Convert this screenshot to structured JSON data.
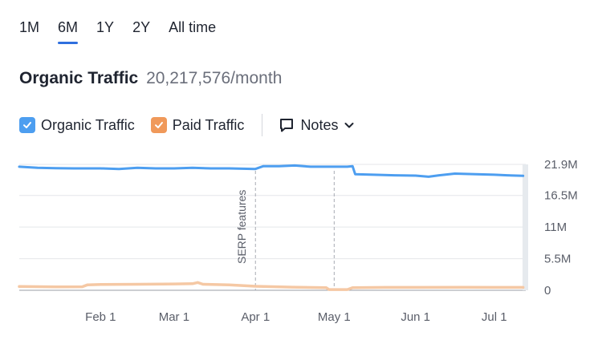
{
  "tabs": [
    {
      "label": "1M",
      "active": false
    },
    {
      "label": "6M",
      "active": true
    },
    {
      "label": "1Y",
      "active": false
    },
    {
      "label": "2Y",
      "active": false
    },
    {
      "label": "All time",
      "active": false
    }
  ],
  "header": {
    "title": "Organic Traffic",
    "value": "20,217,576",
    "unit": "/month"
  },
  "legend": {
    "items": [
      {
        "label": "Organic Traffic",
        "color": "#4d9ef0",
        "checked": true
      },
      {
        "label": "Paid Traffic",
        "color": "#f0995a",
        "checked": true
      }
    ],
    "notes_label": "Notes"
  },
  "chart_data": {
    "type": "line",
    "x_tick_labels": [
      "Feb 1",
      "Mar 1",
      "Apr 1",
      "May 1",
      "Jun 1",
      "Jul 1"
    ],
    "y_tick_labels": [
      "21.9M",
      "16.5M",
      "11M",
      "5.5M",
      "0"
    ],
    "ylim": [
      0,
      21900000
    ],
    "grid": true,
    "annotations": [
      {
        "date": "Apr 1",
        "label": "SERP features"
      },
      {
        "date": "May 1",
        "label": ""
      }
    ],
    "series": [
      {
        "name": "Organic Traffic",
        "color": "#4d9ef0",
        "points": [
          [
            "Jan 1",
            21500000.0
          ],
          [
            "Jan 8",
            21300000.0
          ],
          [
            "Jan 15",
            21250000.0
          ],
          [
            "Jan 22",
            21200000.0
          ],
          [
            "Feb 1",
            21200000.0
          ],
          [
            "Feb 8",
            21100000.0
          ],
          [
            "Feb 15",
            21300000.0
          ],
          [
            "Feb 22",
            21200000.0
          ],
          [
            "Mar 1",
            21200000.0
          ],
          [
            "Mar 8",
            21300000.0
          ],
          [
            "Mar 15",
            21200000.0
          ],
          [
            "Mar 22",
            21200000.0
          ],
          [
            "Apr 1",
            21100000.0
          ],
          [
            "Apr 4",
            21600000.0
          ],
          [
            "Apr 10",
            21600000.0
          ],
          [
            "Apr 16",
            21700000.0
          ],
          [
            "Apr 22",
            21500000.0
          ],
          [
            "May 1",
            21500000.0
          ],
          [
            "May 6",
            21500000.0
          ],
          [
            "May 8",
            21600000.0
          ],
          [
            "May 9",
            20200000.0
          ],
          [
            "May 16",
            20100000.0
          ],
          [
            "May 24",
            20000000.0
          ],
          [
            "Jun 1",
            19950000.0
          ],
          [
            "Jun 6",
            19750000.0
          ],
          [
            "Jun 10",
            20000000.0
          ],
          [
            "Jun 16",
            20300000.0
          ],
          [
            "Jun 24",
            20200000.0
          ],
          [
            "Jul 1",
            20100000.0
          ],
          [
            "Jul 6",
            20000000.0
          ],
          [
            "Jul 12",
            19900000.0
          ]
        ]
      },
      {
        "name": "Paid Traffic",
        "color": "#f5c8a4",
        "points": [
          [
            "Jan 1",
            650000.0
          ],
          [
            "Jan 15",
            600000.0
          ],
          [
            "Jan 25",
            620000.0
          ],
          [
            "Jan 27",
            950000.0
          ],
          [
            "Feb 1",
            1000000.0
          ],
          [
            "Feb 15",
            1050000.0
          ],
          [
            "Mar 1",
            1100000.0
          ],
          [
            "Mar 8",
            1150000.0
          ],
          [
            "Mar 10",
            1350000.0
          ],
          [
            "Mar 12",
            1050000.0
          ],
          [
            "Mar 22",
            950000.0
          ],
          [
            "Apr 1",
            700000.0
          ],
          [
            "Apr 15",
            550000.0
          ],
          [
            "Apr 28",
            450000.0
          ],
          [
            "Apr 29",
            120000.0
          ],
          [
            "May 6",
            120000.0
          ],
          [
            "May 8",
            450000.0
          ],
          [
            "May 20",
            500000.0
          ],
          [
            "Jun 1",
            500000.0
          ],
          [
            "Jun 20",
            520000.0
          ],
          [
            "Jul 1",
            500000.0
          ],
          [
            "Jul 12",
            500000.0
          ]
        ]
      }
    ]
  }
}
